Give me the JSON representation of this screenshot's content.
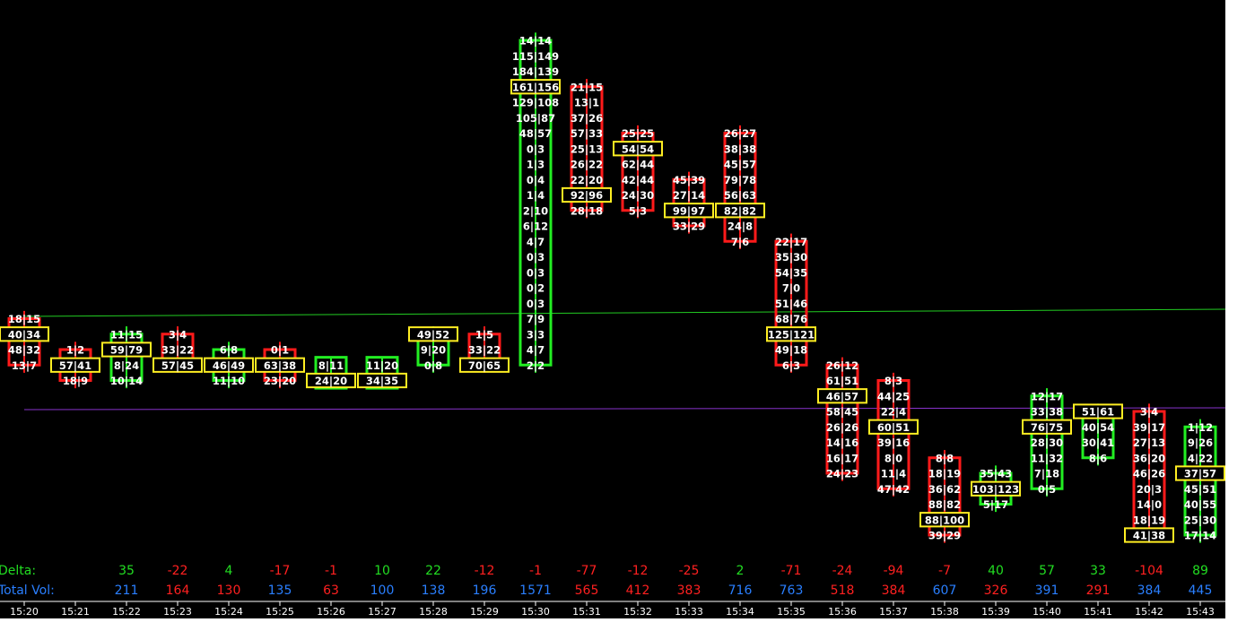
{
  "chart_data": {
    "type": "footprint",
    "time_labels": [
      "15:20",
      "15:21",
      "15:22",
      "15:23",
      "15:24",
      "15:25",
      "15:26",
      "15:27",
      "15:28",
      "15:29",
      "15:30",
      "15:31",
      "15:32",
      "15:33",
      "15:34",
      "15:35",
      "15:36",
      "15:37",
      "15:38",
      "15:39",
      "15:40",
      "15:41",
      "15:42",
      "15:43"
    ],
    "bars": [
      {
        "cells": [
          "18|15",
          "40|34",
          "48|32",
          "13|7"
        ],
        "poc": 1,
        "color": "#ff1a1a"
      },
      {
        "cells": [
          "1|2",
          "57|41",
          "18|9"
        ],
        "poc": 1,
        "color": "#ff1a1a"
      },
      {
        "cells": [
          "11|15",
          "59|79",
          "8|24",
          "10|14"
        ],
        "poc": 1,
        "color": "#22ee22"
      },
      {
        "cells": [
          "3|4",
          "33|22",
          "57|45"
        ],
        "poc": 2,
        "color": "#ff1a1a"
      },
      {
        "cells": [
          "6|8",
          "46|49",
          "11|10"
        ],
        "poc": 1,
        "color": "#22ee22"
      },
      {
        "cells": [
          "0|1",
          "63|38",
          "23|20"
        ],
        "poc": 1,
        "color": "#ff1a1a"
      },
      {
        "cells": [
          "8|11",
          "24|20"
        ],
        "poc": 1,
        "color": "#22ee22"
      },
      {
        "cells": [
          "11|20",
          "34|35"
        ],
        "poc": 1,
        "color": "#22ee22"
      },
      {
        "cells": [
          "49|52",
          "9|20",
          "0|8"
        ],
        "poc": 0,
        "color": "#22ee22"
      },
      {
        "cells": [
          "1|5",
          "33|22",
          "70|65"
        ],
        "poc": 2,
        "color": "#ff1a1a"
      },
      {
        "cells": [
          "14|14",
          "115|149",
          "184|139",
          "161|156",
          "129|108",
          "105|87",
          "48|57",
          "0|3",
          "1|3",
          "0|4",
          "1|4",
          "2|10",
          "6|12",
          "4|7",
          "0|3",
          "0|3",
          "0|2",
          "0|3",
          "7|9",
          "3|3",
          "4|7",
          "2|2"
        ],
        "poc": 3,
        "color": "#22ee22"
      },
      {
        "cells": [
          "21|15",
          "13|1",
          "37|26",
          "57|33",
          "25|13",
          "26|22",
          "22|20",
          "92|96",
          "28|18"
        ],
        "poc": 7,
        "color": "#ff1a1a"
      },
      {
        "cells": [
          "25|25",
          "54|54",
          "62|44",
          "42|44",
          "24|30",
          "5|3"
        ],
        "poc": 1,
        "color": "#ff1a1a"
      },
      {
        "cells": [
          "45|39",
          "27|14",
          "99|97",
          "33|29"
        ],
        "poc": 2,
        "color": "#ff1a1a"
      },
      {
        "cells": [
          "26|27",
          "38|38",
          "45|57",
          "79|78",
          "56|63",
          "82|82",
          "24|8",
          "7|6"
        ],
        "poc": 5,
        "color": "#ff1a1a"
      },
      {
        "cells": [
          "22|17",
          "35|30",
          "54|35",
          "7|0",
          "51|46",
          "68|76",
          "125|121",
          "49|18",
          "6|3"
        ],
        "poc": 6,
        "color": "#ff1a1a"
      },
      {
        "cells": [
          "26|12",
          "61|51",
          "46|57",
          "58|45",
          "26|26",
          "14|16",
          "16|17",
          "24|23"
        ],
        "poc": 2,
        "color": "#ff1a1a"
      },
      {
        "cells": [
          "8|3",
          "44|25",
          "22|4",
          "60|51",
          "39|16",
          "8|0",
          "11|4",
          "47|42"
        ],
        "poc": 3,
        "color": "#ff1a1a"
      },
      {
        "cells": [
          "8|8",
          "18|19",
          "36|62",
          "88|82",
          "88|100",
          "39|29"
        ],
        "poc": 4,
        "color": "#ff1a1a"
      },
      {
        "cells": [
          "35|43",
          "103|123",
          "5|17"
        ],
        "poc": 1,
        "color": "#22ee22"
      },
      {
        "cells": [
          "12|17",
          "33|38",
          "76|75",
          "28|30",
          "11|32",
          "7|18",
          "0|5"
        ],
        "poc": 2,
        "color": "#22ee22"
      },
      {
        "cells": [
          "51|61",
          "40|54",
          "30|41",
          "8|6"
        ],
        "poc": 0,
        "color": "#22ee22"
      },
      {
        "cells": [
          "3|4",
          "39|17",
          "27|13",
          "36|20",
          "46|26",
          "20|3",
          "14|0",
          "18|19",
          "41|38"
        ],
        "poc": 8,
        "color": "#ff1a1a"
      },
      {
        "cells": [
          "1|12",
          "9|26",
          "4|22",
          "37|57",
          "45|51",
          "40|55",
          "25|30",
          "17|14"
        ],
        "poc": 3,
        "color": "#22ee22"
      }
    ],
    "delta_label": "Delta:",
    "total_vol_label": "Total Vol:",
    "delta": [
      35,
      -22,
      4,
      -17,
      -1,
      10,
      22,
      -12,
      -1,
      -77,
      -12,
      -25,
      2,
      -71,
      -24,
      -94,
      -7,
      40,
      57,
      33,
      -104,
      89
    ],
    "total_vol": [
      211,
      164,
      130,
      135,
      63,
      100,
      138,
      196,
      1571,
      565,
      412,
      383,
      716,
      763,
      518,
      384,
      607,
      326,
      391,
      291,
      384,
      445
    ],
    "vol_colors": [
      "#2a7fff",
      "#ff2020",
      "#ff2020",
      "#2a7fff",
      "#ff2020",
      "#2a7fff",
      "#2a7fff",
      "#2a7fff",
      "#2a7fff",
      "#ff2020",
      "#ff2020",
      "#ff2020",
      "#2a7fff",
      "#2a7fff",
      "#ff2020",
      "#ff2020",
      "#2a7fff",
      "#ff2020",
      "#2a7fff",
      "#ff2020",
      "#2a7fff",
      "#2a7fff"
    ],
    "positive_color": "#22dd22",
    "negative_color": "#ff2020",
    "poc_color": "#ffee22"
  }
}
